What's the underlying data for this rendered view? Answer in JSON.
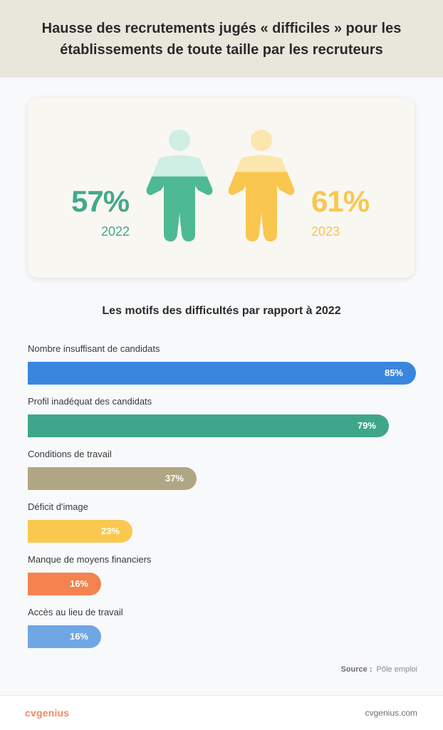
{
  "header": {
    "title": "Hausse des recrutements jugés « difficiles » pour les établissements de toute taille par les recruteurs"
  },
  "stats": [
    {
      "value": "57%",
      "year": "2022",
      "color": "#43a98a",
      "fill_fraction": 0.57
    },
    {
      "value": "61%",
      "year": "2023",
      "color": "#f9c74f",
      "fill_fraction": 0.61
    }
  ],
  "chart_data": {
    "type": "bar",
    "orientation": "horizontal",
    "title": "Les motifs des difficultés par rapport à 2022",
    "categories": [
      "Nombre insuffisant de candidats",
      "Profil inadéquat des candidats",
      "Conditions de travail",
      "Déficit d'image",
      "Manque de moyens financiers",
      "Accès au lieu de travail"
    ],
    "values": [
      85,
      79,
      37,
      23,
      16,
      16
    ],
    "value_labels": [
      "85%",
      "79%",
      "37%",
      "23%",
      "16%",
      "16%"
    ],
    "colors": [
      "#3a86de",
      "#3fa68b",
      "#b1a684",
      "#f9c84f",
      "#f4834f",
      "#6fa7e4"
    ],
    "xlim": [
      0,
      85
    ],
    "grid": false
  },
  "source": {
    "label": "Source :",
    "value": "Pôle emploi"
  },
  "footer": {
    "logo": "cvgenius",
    "site": "cvgenius.com"
  }
}
